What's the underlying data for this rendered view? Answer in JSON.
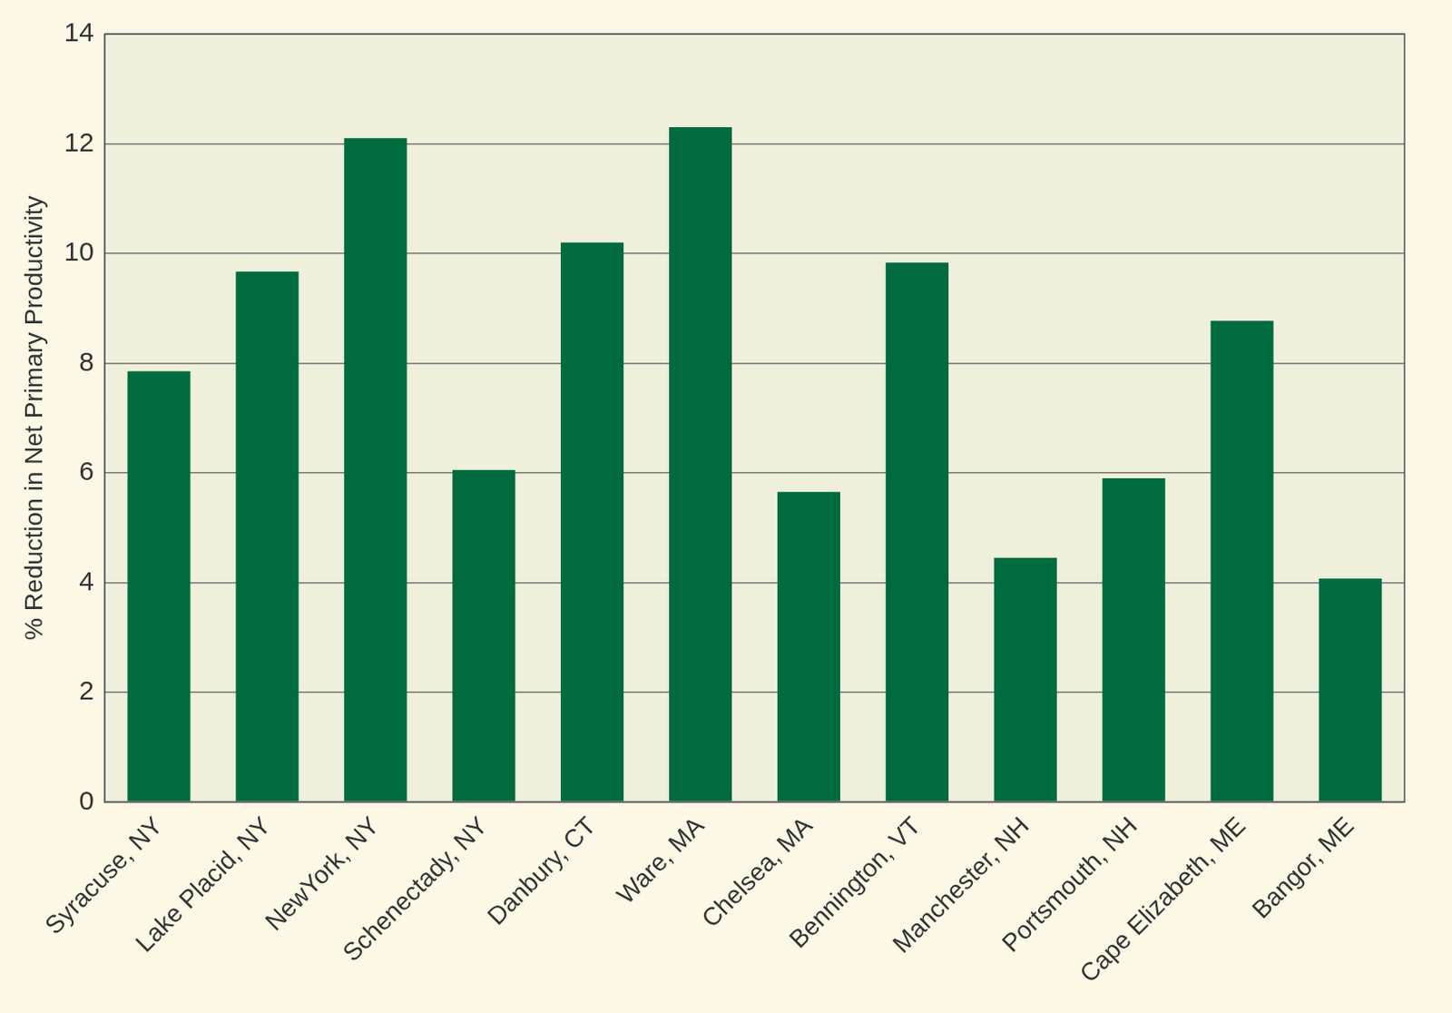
{
  "chart_data": {
    "type": "bar",
    "y_label": "% Reduction in Net Primary Productivity",
    "categories": [
      "Syracuse, NY",
      "Lake Placid, NY",
      "NewYork, NY",
      "Schenectady, NY",
      "Danbury, CT",
      "Ware, MA",
      "Chelsea, MA",
      "Bennington, VT",
      "Manchester, NH",
      "Portsmouth, NH",
      "Cape Elizabeth, ME",
      "Bangor, ME"
    ],
    "values": [
      7.85,
      9.67,
      12.1,
      6.05,
      10.2,
      12.3,
      5.65,
      9.83,
      4.45,
      5.9,
      8.77,
      4.07
    ],
    "color": "#006b3f",
    "ylim": [
      0,
      14
    ],
    "yticks": [
      0,
      2,
      4,
      6,
      8,
      10,
      12,
      14
    ],
    "grid": true
  }
}
